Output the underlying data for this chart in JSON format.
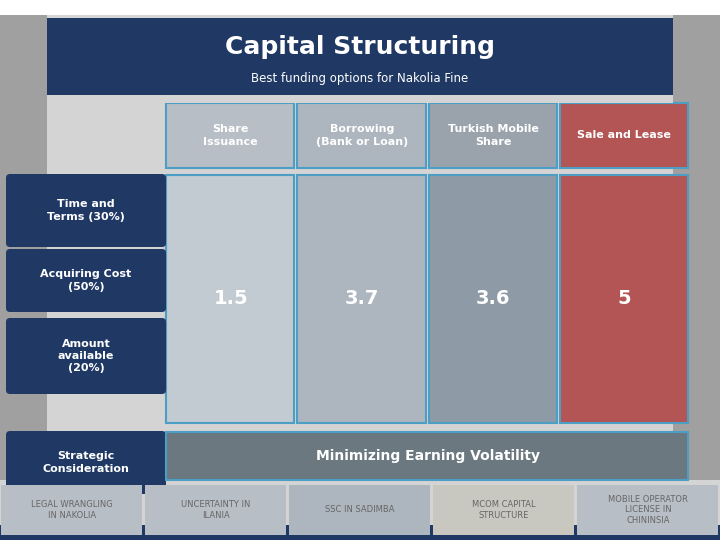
{
  "title": "Capital Structuring",
  "subtitle": "Best funding options for Nakolia Fine",
  "background_color": "#d4d4d4",
  "title_bg_color": "#1f3864",
  "title_text_color": "#ffffff",
  "subtitle_text_color": "#ffffff",
  "col_headers": [
    "Share\nIssuance",
    "Borrowing\n(Bank or Loan)",
    "Turkish Mobile\nShare",
    "Sale and Lease"
  ],
  "col_header_colors": [
    "#b8bec6",
    "#adb5be",
    "#9aa3ac",
    "#b35555"
  ],
  "col_header_text_color": "#ffffff",
  "row_labels": [
    "Time and\nTerms (30%)",
    "Acquiring Cost\n(50%)",
    "Amount\navailable\n(20%)",
    "Strategic\nConsideration"
  ],
  "row_label_bg": "#1f3864",
  "row_label_text_color": "#ffffff",
  "big_cell_colors": [
    "#c2cad2",
    "#adb5bf",
    "#8e9aa6",
    "#b35555"
  ],
  "cell_values_mid": [
    "1.5",
    "3.7",
    "3.6",
    "5"
  ],
  "strategic_color": "#6b7880",
  "strategic_text": "Minimizing Earning Volatility",
  "border_color": "#4d9ec4",
  "footer_labels": [
    "LEGAL WRANGLING\nIN NAKOLIA",
    "UNCERTAINTY IN\nILANIA",
    "SSC IN SADIMBA",
    "MCOM CAPITAL\nSTRUCTURE",
    "MOBILE OPERATOR\nLICENSE IN\nCHININSIA"
  ],
  "footer_bg_colors": [
    "#b8bec6",
    "#b8bec6",
    "#adb5be",
    "#c8c8c0",
    "#b8bec6"
  ],
  "footer_text_color": "#666666",
  "side_strip_color": "#a0a0a0",
  "white_top_color": "#ffffff"
}
